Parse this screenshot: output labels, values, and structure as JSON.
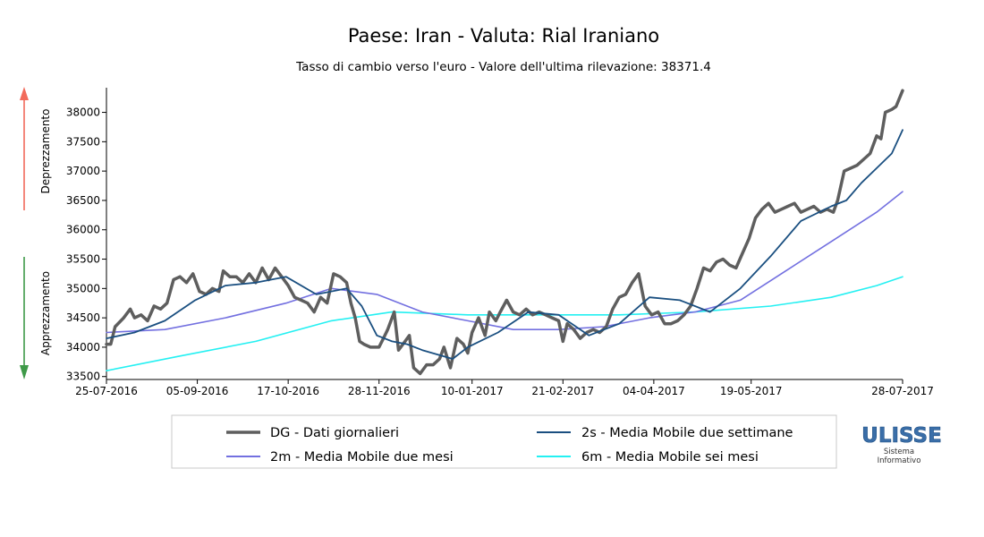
{
  "chart_data": {
    "type": "line",
    "title": "Paese: Iran - Valuta: Rial Iraniano",
    "subtitle": "Tasso di cambio verso l'euro - Valore dell'ultima rilevazione: 38371.4",
    "ylabel_up": "Deprezzamento",
    "ylabel_down": "Apprezzamento",
    "ylim": [
      33450,
      38420
    ],
    "y_ticks": [
      33500,
      34000,
      34500,
      35000,
      35500,
      36000,
      36500,
      37000,
      37500,
      38000
    ],
    "xlim": [
      "2016-07-25",
      "2017-07-28"
    ],
    "x_ticks": [
      "25-07-2016",
      "05-09-2016",
      "17-10-2016",
      "28-11-2016",
      "10-01-2017",
      "21-02-2017",
      "04-04-2017",
      "19-05-2017",
      "28-07-2017"
    ],
    "legend_placement": "bottom",
    "grid": false,
    "colors": {
      "up_arrow": "#f26b5b",
      "down_arrow": "#3e9a48"
    },
    "series": [
      {
        "name": "DG - Dati giornalieri",
        "color": "#5e5e5e",
        "points": [
          [
            "2016-07-25",
            34050
          ],
          [
            "2016-07-27",
            34050
          ],
          [
            "2016-07-29",
            34350
          ],
          [
            "2016-08-02",
            34500
          ],
          [
            "2016-08-05",
            34650
          ],
          [
            "2016-08-07",
            34500
          ],
          [
            "2016-08-10",
            34550
          ],
          [
            "2016-08-13",
            34450
          ],
          [
            "2016-08-16",
            34700
          ],
          [
            "2016-08-19",
            34650
          ],
          [
            "2016-08-22",
            34750
          ],
          [
            "2016-08-25",
            35150
          ],
          [
            "2016-08-28",
            35200
          ],
          [
            "2016-08-31",
            35100
          ],
          [
            "2016-09-03",
            35250
          ],
          [
            "2016-09-06",
            34950
          ],
          [
            "2016-09-09",
            34900
          ],
          [
            "2016-09-12",
            35000
          ],
          [
            "2016-09-15",
            34950
          ],
          [
            "2016-09-17",
            35300
          ],
          [
            "2016-09-20",
            35200
          ],
          [
            "2016-09-23",
            35200
          ],
          [
            "2016-09-26",
            35100
          ],
          [
            "2016-09-29",
            35250
          ],
          [
            "2016-10-02",
            35100
          ],
          [
            "2016-10-05",
            35350
          ],
          [
            "2016-10-08",
            35150
          ],
          [
            "2016-10-11",
            35350
          ],
          [
            "2016-10-14",
            35200
          ],
          [
            "2016-10-17",
            35050
          ],
          [
            "2016-10-20",
            34850
          ],
          [
            "2016-10-23",
            34800
          ],
          [
            "2016-10-26",
            34750
          ],
          [
            "2016-10-29",
            34600
          ],
          [
            "2016-11-01",
            34850
          ],
          [
            "2016-11-04",
            34750
          ],
          [
            "2016-11-07",
            35250
          ],
          [
            "2016-11-10",
            35200
          ],
          [
            "2016-11-13",
            35100
          ],
          [
            "2016-11-15",
            34750
          ],
          [
            "2016-11-17",
            34500
          ],
          [
            "2016-11-19",
            34100
          ],
          [
            "2016-11-21",
            34050
          ],
          [
            "2016-11-24",
            34000
          ],
          [
            "2016-11-26",
            34000
          ],
          [
            "2016-11-28",
            34000
          ],
          [
            "2016-11-30",
            34150
          ],
          [
            "2016-12-02",
            34300
          ],
          [
            "2016-12-05",
            34600
          ],
          [
            "2016-12-07",
            33950
          ],
          [
            "2016-12-10",
            34100
          ],
          [
            "2016-12-12",
            34200
          ],
          [
            "2016-12-14",
            33650
          ],
          [
            "2016-12-17",
            33550
          ],
          [
            "2016-12-20",
            33700
          ],
          [
            "2016-12-23",
            33700
          ],
          [
            "2016-12-26",
            33800
          ],
          [
            "2016-12-28",
            34000
          ],
          [
            "2016-12-31",
            33650
          ],
          [
            "2017-01-03",
            34150
          ],
          [
            "2017-01-06",
            34050
          ],
          [
            "2017-01-08",
            33900
          ],
          [
            "2017-01-10",
            34250
          ],
          [
            "2017-01-13",
            34500
          ],
          [
            "2017-01-16",
            34200
          ],
          [
            "2017-01-18",
            34600
          ],
          [
            "2017-01-21",
            34450
          ],
          [
            "2017-01-23",
            34600
          ],
          [
            "2017-01-26",
            34800
          ],
          [
            "2017-01-29",
            34600
          ],
          [
            "2017-02-01",
            34550
          ],
          [
            "2017-02-04",
            34650
          ],
          [
            "2017-02-07",
            34550
          ],
          [
            "2017-02-10",
            34600
          ],
          [
            "2017-02-13",
            34550
          ],
          [
            "2017-02-16",
            34500
          ],
          [
            "2017-02-19",
            34450
          ],
          [
            "2017-02-21",
            34100
          ],
          [
            "2017-02-23",
            34400
          ],
          [
            "2017-02-26",
            34300
          ],
          [
            "2017-03-01",
            34150
          ],
          [
            "2017-03-04",
            34250
          ],
          [
            "2017-03-07",
            34300
          ],
          [
            "2017-03-10",
            34250
          ],
          [
            "2017-03-13",
            34350
          ],
          [
            "2017-03-16",
            34650
          ],
          [
            "2017-03-19",
            34850
          ],
          [
            "2017-03-22",
            34900
          ],
          [
            "2017-03-25",
            35100
          ],
          [
            "2017-03-28",
            35250
          ],
          [
            "2017-03-31",
            34700
          ],
          [
            "2017-04-03",
            34550
          ],
          [
            "2017-04-06",
            34600
          ],
          [
            "2017-04-09",
            34400
          ],
          [
            "2017-04-12",
            34400
          ],
          [
            "2017-04-15",
            34450
          ],
          [
            "2017-04-18",
            34550
          ],
          [
            "2017-04-21",
            34700
          ],
          [
            "2017-04-24",
            35000
          ],
          [
            "2017-04-27",
            35350
          ],
          [
            "2017-04-30",
            35300
          ],
          [
            "2017-05-03",
            35450
          ],
          [
            "2017-05-06",
            35500
          ],
          [
            "2017-05-09",
            35400
          ],
          [
            "2017-05-12",
            35350
          ],
          [
            "2017-05-15",
            35600
          ],
          [
            "2017-05-18",
            35850
          ],
          [
            "2017-05-21",
            36200
          ],
          [
            "2017-05-24",
            36350
          ],
          [
            "2017-05-27",
            36450
          ],
          [
            "2017-05-30",
            36300
          ],
          [
            "2017-06-02",
            36350
          ],
          [
            "2017-06-05",
            36400
          ],
          [
            "2017-06-08",
            36450
          ],
          [
            "2017-06-11",
            36300
          ],
          [
            "2017-06-14",
            36350
          ],
          [
            "2017-06-17",
            36400
          ],
          [
            "2017-06-20",
            36300
          ],
          [
            "2017-06-23",
            36350
          ],
          [
            "2017-06-26",
            36300
          ],
          [
            "2017-06-28",
            36500
          ],
          [
            "2017-07-01",
            37000
          ],
          [
            "2017-07-04",
            37050
          ],
          [
            "2017-07-07",
            37100
          ],
          [
            "2017-07-10",
            37200
          ],
          [
            "2017-07-13",
            37300
          ],
          [
            "2017-07-16",
            37600
          ],
          [
            "2017-07-18",
            37550
          ],
          [
            "2017-07-20",
            38000
          ],
          [
            "2017-07-23",
            38050
          ],
          [
            "2017-07-25",
            38100
          ],
          [
            "2017-07-28",
            38371.4
          ]
        ]
      },
      {
        "name": "2s - Media Mobile due settimane",
        "color": "#1a4f80",
        "points": [
          [
            "2016-07-25",
            34150
          ],
          [
            "2016-08-07",
            34250
          ],
          [
            "2016-08-21",
            34450
          ],
          [
            "2016-09-04",
            34800
          ],
          [
            "2016-09-18",
            35050
          ],
          [
            "2016-10-02",
            35100
          ],
          [
            "2016-10-16",
            35200
          ],
          [
            "2016-10-30",
            34900
          ],
          [
            "2016-11-13",
            35000
          ],
          [
            "2016-11-20",
            34700
          ],
          [
            "2016-11-27",
            34200
          ],
          [
            "2016-12-04",
            34100
          ],
          [
            "2016-12-11",
            34050
          ],
          [
            "2016-12-18",
            33950
          ],
          [
            "2017-01-01",
            33800
          ],
          [
            "2017-01-08",
            34000
          ],
          [
            "2017-01-22",
            34250
          ],
          [
            "2017-02-05",
            34600
          ],
          [
            "2017-02-19",
            34550
          ],
          [
            "2017-03-05",
            34200
          ],
          [
            "2017-03-19",
            34400
          ],
          [
            "2017-04-02",
            34850
          ],
          [
            "2017-04-16",
            34800
          ],
          [
            "2017-04-30",
            34600
          ],
          [
            "2017-05-14",
            35000
          ],
          [
            "2017-05-28",
            35550
          ],
          [
            "2017-06-11",
            36150
          ],
          [
            "2017-06-25",
            36400
          ],
          [
            "2017-07-02",
            36500
          ],
          [
            "2017-07-09",
            36800
          ],
          [
            "2017-07-16",
            37050
          ],
          [
            "2017-07-23",
            37300
          ],
          [
            "2017-07-28",
            37700
          ]
        ]
      },
      {
        "name": "2m - Media Mobile due mesi",
        "color": "#7370e0",
        "points": [
          [
            "2016-07-25",
            34250
          ],
          [
            "2016-08-21",
            34300
          ],
          [
            "2016-09-18",
            34500
          ],
          [
            "2016-10-16",
            34750
          ],
          [
            "2016-11-06",
            35000
          ],
          [
            "2016-11-27",
            34900
          ],
          [
            "2016-12-18",
            34600
          ],
          [
            "2017-01-08",
            34450
          ],
          [
            "2017-01-29",
            34300
          ],
          [
            "2017-02-19",
            34300
          ],
          [
            "2017-03-12",
            34350
          ],
          [
            "2017-04-02",
            34500
          ],
          [
            "2017-04-23",
            34600
          ],
          [
            "2017-05-14",
            34800
          ],
          [
            "2017-06-04",
            35300
          ],
          [
            "2017-06-25",
            35800
          ],
          [
            "2017-07-16",
            36300
          ],
          [
            "2017-07-28",
            36650
          ]
        ]
      },
      {
        "name": "6m - Media Mobile sei mesi",
        "color": "#24f0f2",
        "points": [
          [
            "2016-07-25",
            33600
          ],
          [
            "2016-08-28",
            33850
          ],
          [
            "2016-10-02",
            34100
          ],
          [
            "2016-11-06",
            34450
          ],
          [
            "2016-12-04",
            34600
          ],
          [
            "2017-01-08",
            34550
          ],
          [
            "2017-02-12",
            34550
          ],
          [
            "2017-03-19",
            34550
          ],
          [
            "2017-04-23",
            34600
          ],
          [
            "2017-05-28",
            34700
          ],
          [
            "2017-06-25",
            34850
          ],
          [
            "2017-07-16",
            35050
          ],
          [
            "2017-07-28",
            35200
          ]
        ]
      }
    ]
  },
  "logo": {
    "name": "ULISSE",
    "line1": "Sistema",
    "line2": "Informativo"
  }
}
